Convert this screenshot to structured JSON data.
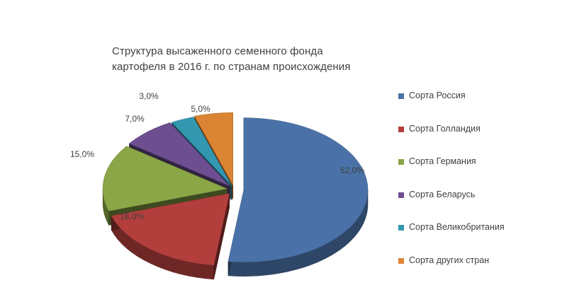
{
  "chart_data": {
    "type": "pie",
    "title": [
      "Структура высаженного семенного фонда",
      "картофеля в 2016 г. по странам происхождения"
    ],
    "categories": [
      "Сорта Россия",
      "Сорта Голландия",
      "Сорта Германия",
      "Сорта Беларусь",
      "Сорта Великобритания",
      "Сорта других стран"
    ],
    "values": [
      52.0,
      18.0,
      15.0,
      7.0,
      3.0,
      5.0
    ],
    "labels": [
      "52,0%",
      "18,0%",
      "15,0%",
      "7,0%",
      "3,0%",
      "5,0%"
    ],
    "colors": [
      "#4A72A8",
      "#B33F3D",
      "#8AA646",
      "#6D4E91",
      "#3497B0",
      "#DB8433"
    ],
    "legend_position": "right",
    "style": "3d-exploded"
  }
}
